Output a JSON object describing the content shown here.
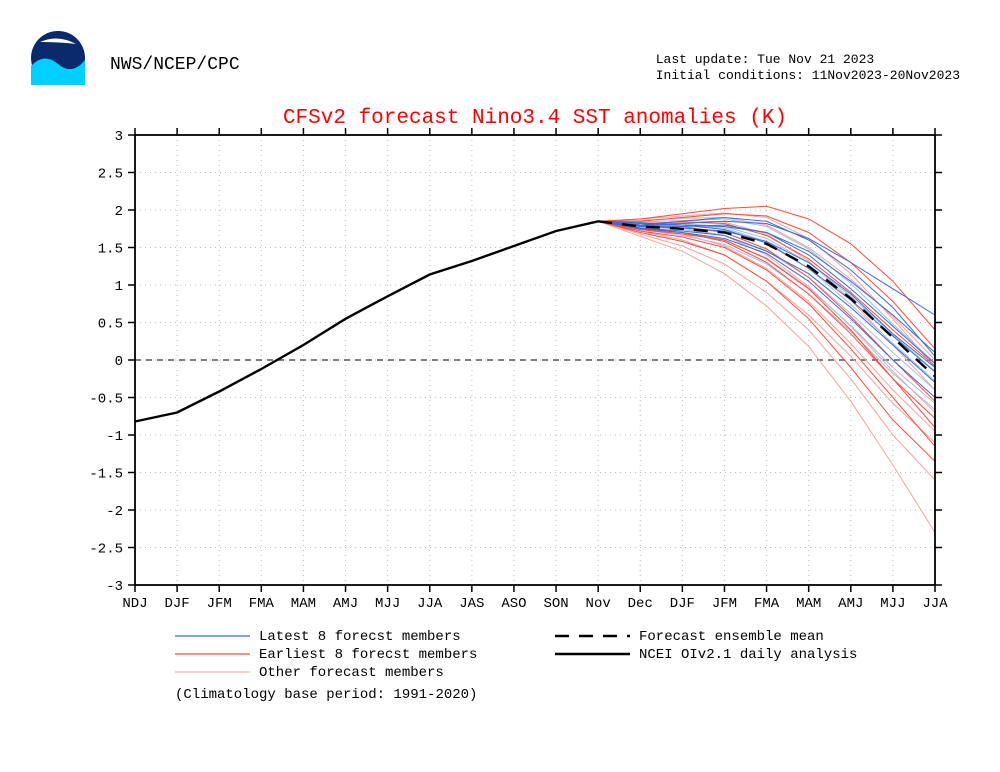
{
  "header": {
    "agency": "NWS/NCEP/CPC",
    "last_update_label": "Last update: Tue Nov 21 2023",
    "init_cond_label": "Initial conditions: 11Nov2023-20Nov2023"
  },
  "chart": {
    "title": "CFSv2 forecast Nino3.4 SST anomalies (K)",
    "type": "line",
    "background_color": "#ffffff",
    "axis_color": "#000000",
    "grid_color": "#bfbfbf",
    "zero_line_color": "#555555",
    "tick_font_size": 14,
    "tick_font_color": "#000000",
    "ylim": [
      -3,
      3
    ],
    "yticks": [
      -3,
      -2.5,
      -2,
      -1.5,
      -1,
      -0.5,
      0,
      0.5,
      1,
      1.5,
      2,
      2.5,
      3
    ],
    "xlim": [
      0,
      19
    ],
    "xticks": [
      0,
      1,
      2,
      3,
      4,
      5,
      6,
      7,
      8,
      9,
      10,
      11,
      12,
      13,
      14,
      15,
      16,
      17,
      18,
      19
    ],
    "xtick_labels": [
      "NDJ",
      "DJF",
      "JFM",
      "FMA",
      "MAM",
      "AMJ",
      "MJJ",
      "JJA",
      "JAS",
      "ASO",
      "SON",
      "Nov",
      "Dec",
      "DJF",
      "JFM",
      "FMA",
      "MAM",
      "AMJ",
      "MJJ",
      "JJA"
    ],
    "colors": {
      "latest": "#3a6dd6",
      "earliest": "#ff4a3a",
      "other_red": "#f4a39b",
      "other_blue": "#a6bce8",
      "ensemble_mean": "#000000",
      "analysis": "#000000"
    },
    "line_widths": {
      "member": 1.0,
      "ensemble": 2.4,
      "analysis": 2.4
    },
    "analysis": {
      "x": [
        0,
        1,
        2,
        3,
        4,
        5,
        6,
        7,
        8,
        9,
        10,
        11
      ],
      "y": [
        -0.82,
        -0.7,
        -0.42,
        -0.12,
        0.2,
        0.55,
        0.85,
        1.14,
        1.32,
        1.52,
        1.72,
        1.85
      ]
    },
    "ensemble_mean": {
      "x": [
        11,
        12,
        13,
        14,
        15,
        16,
        17,
        18,
        19
      ],
      "y": [
        1.85,
        1.78,
        1.75,
        1.7,
        1.55,
        1.25,
        0.82,
        0.3,
        -0.22
      ]
    },
    "latest_members": [
      {
        "x": [
          11,
          12,
          13,
          14,
          15,
          16,
          17,
          18,
          19
        ],
        "y": [
          1.85,
          1.8,
          1.82,
          1.85,
          1.82,
          1.62,
          1.3,
          0.95,
          0.6
        ]
      },
      {
        "x": [
          11,
          12,
          13,
          14,
          15,
          16,
          17,
          18,
          19
        ],
        "y": [
          1.85,
          1.82,
          1.8,
          1.78,
          1.7,
          1.45,
          1.05,
          0.6,
          0.1
        ]
      },
      {
        "x": [
          11,
          12,
          13,
          14,
          15,
          16,
          17,
          18,
          19
        ],
        "y": [
          1.85,
          1.78,
          1.76,
          1.72,
          1.58,
          1.3,
          0.88,
          0.35,
          -0.1
        ]
      },
      {
        "x": [
          11,
          12,
          13,
          14,
          15,
          16,
          17,
          18,
          19
        ],
        "y": [
          1.85,
          1.76,
          1.72,
          1.66,
          1.45,
          1.15,
          0.7,
          0.2,
          -0.3
        ]
      },
      {
        "x": [
          11,
          12,
          13,
          14,
          15,
          16,
          17,
          18,
          19
        ],
        "y": [
          1.85,
          1.8,
          1.85,
          1.9,
          1.85,
          1.6,
          1.2,
          0.7,
          0.05
        ]
      },
      {
        "x": [
          11,
          12,
          13,
          14,
          15,
          16,
          17,
          18,
          19
        ],
        "y": [
          1.85,
          1.75,
          1.7,
          1.62,
          1.42,
          1.05,
          0.55,
          0.0,
          -0.5
        ]
      },
      {
        "x": [
          11,
          12,
          13,
          14,
          15,
          16,
          17,
          18,
          19
        ],
        "y": [
          1.85,
          1.83,
          1.8,
          1.74,
          1.56,
          1.22,
          0.8,
          0.32,
          -0.16
        ]
      },
      {
        "x": [
          11,
          12,
          13,
          14,
          15,
          16,
          17,
          18,
          19
        ],
        "y": [
          1.85,
          1.79,
          1.78,
          1.8,
          1.7,
          1.4,
          0.95,
          0.45,
          -0.05
        ]
      }
    ],
    "earliest_members": [
      {
        "x": [
          11,
          12,
          13,
          14,
          15,
          16,
          17,
          18,
          19
        ],
        "y": [
          1.85,
          1.88,
          1.95,
          2.02,
          2.05,
          1.88,
          1.55,
          1.05,
          0.4
        ]
      },
      {
        "x": [
          11,
          12,
          13,
          14,
          15,
          16,
          17,
          18,
          19
        ],
        "y": [
          1.85,
          1.85,
          1.9,
          1.95,
          1.92,
          1.7,
          1.3,
          0.78,
          0.15
        ]
      },
      {
        "x": [
          11,
          12,
          13,
          14,
          15,
          16,
          17,
          18,
          19
        ],
        "y": [
          1.85,
          1.74,
          1.68,
          1.6,
          1.35,
          0.95,
          0.4,
          -0.25,
          -0.9
        ]
      },
      {
        "x": [
          11,
          12,
          13,
          14,
          15,
          16,
          17,
          18,
          19
        ],
        "y": [
          1.85,
          1.72,
          1.64,
          1.5,
          1.2,
          0.75,
          0.15,
          -0.5,
          -1.15
        ]
      },
      {
        "x": [
          11,
          12,
          13,
          14,
          15,
          16,
          17,
          18,
          19
        ],
        "y": [
          1.85,
          1.7,
          1.58,
          1.4,
          1.05,
          0.55,
          -0.1,
          -0.8,
          -1.35
        ]
      },
      {
        "x": [
          11,
          12,
          13,
          14,
          15,
          16,
          17,
          18,
          19
        ],
        "y": [
          1.85,
          1.8,
          1.78,
          1.7,
          1.48,
          1.1,
          0.58,
          0.0,
          -0.55
        ]
      },
      {
        "x": [
          11,
          12,
          13,
          14,
          15,
          16,
          17,
          18,
          19
        ],
        "y": [
          1.85,
          1.82,
          1.84,
          1.82,
          1.66,
          1.35,
          0.9,
          0.4,
          -0.08
        ]
      },
      {
        "x": [
          11,
          12,
          13,
          14,
          15,
          16,
          17,
          18,
          19
        ],
        "y": [
          1.85,
          1.76,
          1.7,
          1.58,
          1.3,
          0.88,
          0.35,
          -0.25,
          -0.78
        ]
      }
    ],
    "other_members": [
      {
        "color": "other_red",
        "x": [
          11,
          12,
          13,
          14,
          15,
          16,
          17,
          18,
          19
        ],
        "y": [
          1.85,
          1.88,
          1.92,
          1.96,
          1.9,
          1.62,
          1.15,
          0.55,
          -0.1
        ]
      },
      {
        "color": "other_red",
        "x": [
          11,
          12,
          13,
          14,
          15,
          16,
          17,
          18,
          19
        ],
        "y": [
          1.85,
          1.84,
          1.86,
          1.84,
          1.68,
          1.32,
          0.8,
          0.2,
          -0.4
        ]
      },
      {
        "color": "other_red",
        "x": [
          11,
          12,
          13,
          14,
          15,
          16,
          17,
          18,
          19
        ],
        "y": [
          1.85,
          1.8,
          1.76,
          1.66,
          1.4,
          0.98,
          0.45,
          -0.15,
          -0.7
        ]
      },
      {
        "color": "other_red",
        "x": [
          11,
          12,
          13,
          14,
          15,
          16,
          17,
          18,
          19
        ],
        "y": [
          1.85,
          1.76,
          1.68,
          1.52,
          1.22,
          0.78,
          0.22,
          -0.4,
          -0.95
        ]
      },
      {
        "color": "other_red",
        "x": [
          11,
          12,
          13,
          14,
          15,
          16,
          17,
          18,
          19
        ],
        "y": [
          1.85,
          1.72,
          1.6,
          1.4,
          1.05,
          0.6,
          0.05,
          -0.58,
          -1.1
        ]
      },
      {
        "color": "other_red",
        "x": [
          11,
          12,
          13,
          14,
          15,
          16,
          17,
          18,
          19
        ],
        "y": [
          1.85,
          1.68,
          1.52,
          1.28,
          0.9,
          0.4,
          -0.25,
          -1.0,
          -1.6
        ]
      },
      {
        "color": "other_red",
        "x": [
          11,
          12,
          13,
          14,
          15,
          16,
          17,
          18,
          19
        ],
        "y": [
          1.85,
          1.65,
          1.45,
          1.15,
          0.72,
          0.18,
          -0.55,
          -1.4,
          -2.3
        ]
      },
      {
        "color": "other_red",
        "x": [
          11,
          12,
          13,
          14,
          15,
          16,
          17,
          18,
          19
        ],
        "y": [
          1.85,
          1.86,
          1.89,
          1.9,
          1.8,
          1.5,
          1.08,
          0.58,
          0.0
        ]
      },
      {
        "color": "other_blue",
        "x": [
          11,
          12,
          13,
          14,
          15,
          16,
          17,
          18,
          19
        ],
        "y": [
          1.85,
          1.82,
          1.82,
          1.78,
          1.62,
          1.3,
          0.85,
          0.34,
          -0.15
        ]
      },
      {
        "color": "other_blue",
        "x": [
          11,
          12,
          13,
          14,
          15,
          16,
          17,
          18,
          19
        ],
        "y": [
          1.85,
          1.78,
          1.74,
          1.66,
          1.46,
          1.1,
          0.62,
          0.1,
          -0.4
        ]
      },
      {
        "color": "other_blue",
        "x": [
          11,
          12,
          13,
          14,
          15,
          16,
          17,
          18,
          19
        ],
        "y": [
          1.85,
          1.74,
          1.66,
          1.54,
          1.28,
          0.88,
          0.38,
          -0.18,
          -0.66
        ]
      },
      {
        "color": "other_blue",
        "x": [
          11,
          12,
          13,
          14,
          15,
          16,
          17,
          18,
          19
        ],
        "y": [
          1.85,
          1.8,
          1.8,
          1.76,
          1.58,
          1.22,
          0.74,
          0.22,
          -0.28
        ]
      },
      {
        "color": "other_blue",
        "x": [
          11,
          12,
          13,
          14,
          15,
          16,
          17,
          18,
          19
        ],
        "y": [
          1.85,
          1.84,
          1.86,
          1.88,
          1.78,
          1.48,
          1.02,
          0.48,
          -0.04
        ]
      },
      {
        "color": "other_blue",
        "x": [
          11,
          12,
          13,
          14,
          15,
          16,
          17,
          18,
          19
        ],
        "y": [
          1.85,
          1.76,
          1.7,
          1.6,
          1.36,
          0.96,
          0.46,
          -0.1,
          -0.58
        ]
      }
    ]
  },
  "legend": {
    "items": [
      {
        "key": "latest",
        "style": "solid",
        "stroke": "#3a6dd6",
        "width": 1.2,
        "label": "Latest 8 forecst members"
      },
      {
        "key": "earliest",
        "style": "solid",
        "stroke": "#ff4a3a",
        "width": 1.2,
        "label": "Earliest 8 forecst members"
      },
      {
        "key": "other",
        "style": "solid",
        "stroke": "#f4a39b",
        "width": 1.0,
        "label": "Other forecast members"
      },
      {
        "key": "ensemble",
        "style": "dashed",
        "stroke": "#000000",
        "width": 2.4,
        "label": "Forecast ensemble mean"
      },
      {
        "key": "analysis",
        "style": "solid",
        "stroke": "#000000",
        "width": 2.4,
        "label": "NCEI OIv2.1 daily analysis"
      }
    ],
    "note": "(Climatology base period: 1991-2020)",
    "font_size": 14,
    "font_color": "#000000"
  }
}
